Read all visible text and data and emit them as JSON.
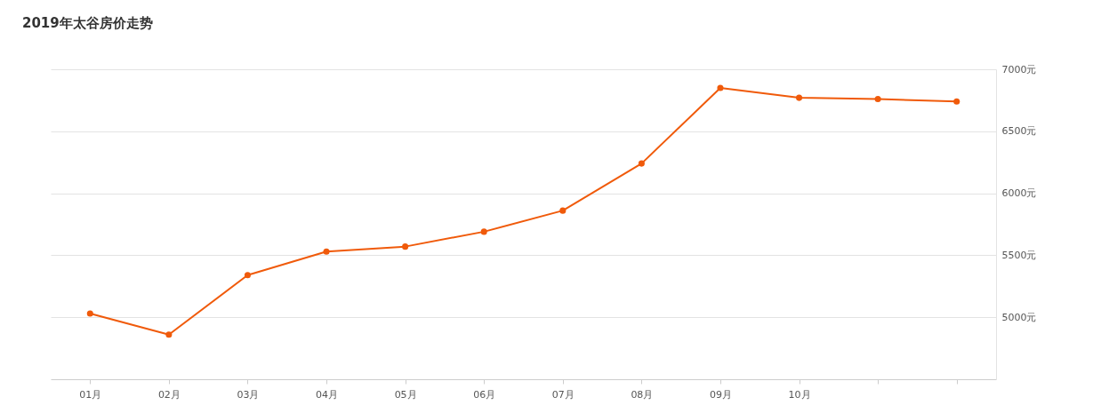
{
  "chart_data": {
    "type": "line",
    "title": "2019年太谷房价走势",
    "categories": [
      "01月",
      "02月",
      "03月",
      "04月",
      "05月",
      "06月",
      "07月",
      "08月",
      "09月",
      "10月",
      null,
      null
    ],
    "series": [
      {
        "color": "#f05a0a",
        "values": [
          5030,
          4860,
          5340,
          5530,
          5570,
          5690,
          5860,
          6240,
          6850,
          6770,
          6760,
          6740
        ]
      }
    ],
    "ylim": [
      4500,
      7000
    ],
    "yticks": [
      {
        "value": 5000,
        "label": "5000元"
      },
      {
        "value": 5500,
        "label": "5500元"
      },
      {
        "value": 6000,
        "label": "6000元"
      },
      {
        "value": 6500,
        "label": "6500元"
      },
      {
        "value": 7000,
        "label": "7000元"
      }
    ],
    "grid": "y",
    "marker": "circle",
    "line_style": "solid"
  }
}
